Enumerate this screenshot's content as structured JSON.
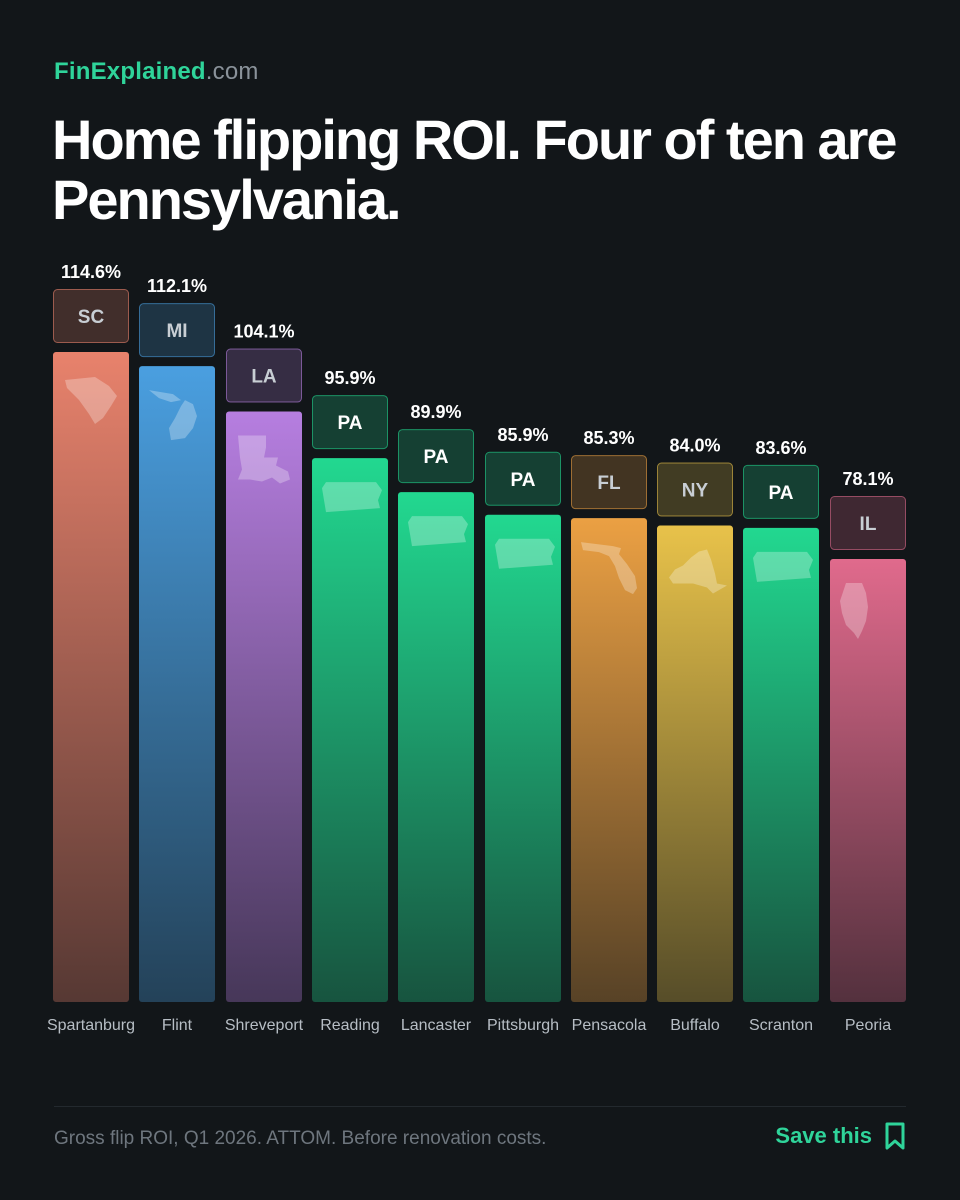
{
  "brand": {
    "name": "FinExplained",
    "domain": ".com"
  },
  "headline": "Home flipping ROI. Four of ten are Pennsylvania.",
  "footnote": "Gross flip ROI, Q1 2026. ATTOM. Before renovation costs.",
  "save": {
    "label": "Save this",
    "icon": "bookmark-icon"
  },
  "colors": {
    "accent": "#2fd49a",
    "background": "#121619"
  },
  "chart_data": {
    "type": "bar",
    "categories": [
      "Spartanburg",
      "Flint",
      "Shreveport",
      "Reading",
      "Lancaster",
      "Pittsburgh",
      "Pensacola",
      "Buffalo",
      "Scranton",
      "Peoria"
    ],
    "values": [
      114.6,
      112.1,
      104.1,
      95.9,
      89.9,
      85.9,
      85.3,
      84.0,
      83.6,
      78.1
    ],
    "value_labels": [
      "114.6%",
      "112.1%",
      "104.1%",
      "95.9%",
      "89.9%",
      "85.9%",
      "85.3%",
      "84.0%",
      "83.6%",
      "78.1%"
    ],
    "states": [
      "SC",
      "MI",
      "LA",
      "PA",
      "PA",
      "PA",
      "FL",
      "NY",
      "PA",
      "IL"
    ],
    "unit": "%",
    "state_colors": {
      "SC": "#e8826c",
      "MI": "#4a9fe0",
      "LA": "#b67ee0",
      "PA": "#22d890",
      "FL": "#eba043",
      "NY": "#e8c24a",
      "IL": "#e06a8c"
    },
    "ylim": [
      0,
      114.6
    ],
    "grid": false,
    "legend": "none"
  }
}
